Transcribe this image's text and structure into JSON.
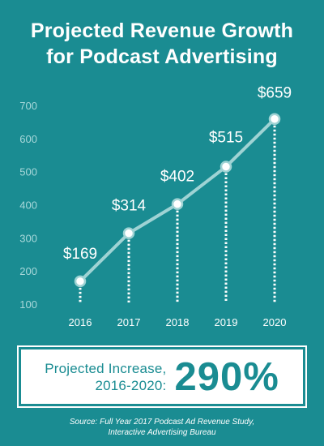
{
  "title": {
    "line1": "Projected Revenue Growth",
    "line2": "for Podcast Advertising"
  },
  "callout": {
    "label_line1": "Projected Increase,",
    "label_line2": "2016-2020:",
    "value": "290%"
  },
  "source": {
    "line1": "Source: Full Year 2017 Podcast Ad Revenue Study,",
    "line2": "Interactive Advertising Bureau"
  },
  "colors": {
    "background": "#1a8c92",
    "line": "#9fd3d4",
    "marker_fill": "#ffffff",
    "tick_text": "#a8d8da"
  },
  "chart_data": {
    "type": "line",
    "categories": [
      "2016",
      "2017",
      "2018",
      "2019",
      "2020"
    ],
    "values": [
      169,
      314,
      402,
      515,
      659
    ],
    "data_labels": [
      "$169",
      "$314",
      "$402",
      "$515",
      "$659"
    ],
    "yticks": [
      100,
      200,
      300,
      400,
      500,
      600,
      700
    ],
    "ylim": [
      100,
      700
    ],
    "title": "Projected Revenue Growth for Podcast Advertising",
    "xlabel": "",
    "ylabel": "",
    "grid": false,
    "dotted_drop_lines": true
  }
}
